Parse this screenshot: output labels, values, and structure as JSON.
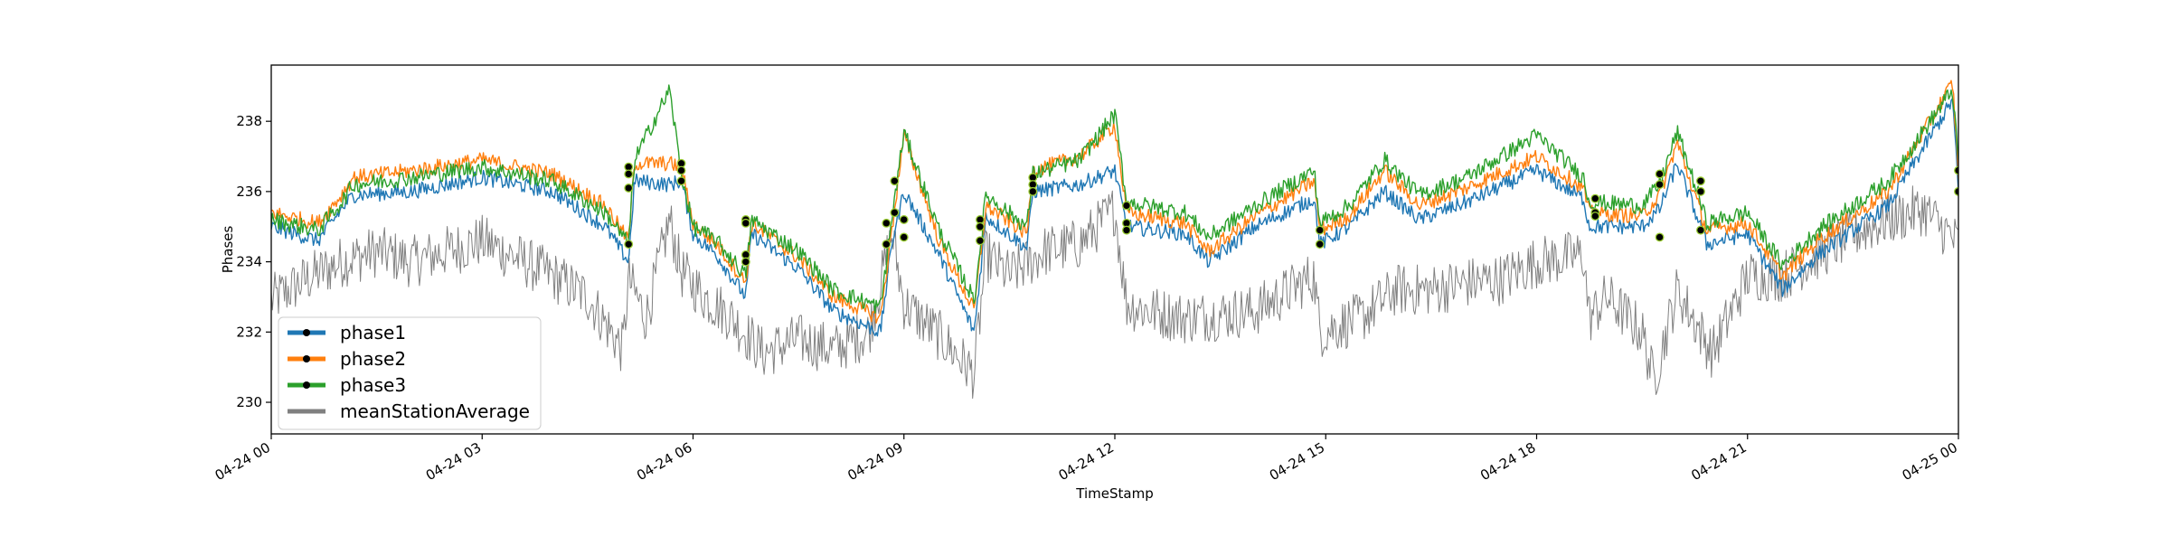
{
  "chart_data": {
    "type": "line",
    "title": "",
    "xlabel": "TimeStamp",
    "ylabel": "Phases",
    "xlim": [
      "2023-04-24T00:00",
      "2023-04-25T00:00"
    ],
    "ylim": [
      229.1,
      239.6
    ],
    "x_ticks": [
      "04-24 00",
      "04-24 03",
      "04-24 06",
      "04-24 09",
      "04-24 12",
      "04-24 15",
      "04-24 18",
      "04-24 21",
      "04-25 00"
    ],
    "y_ticks": [
      230,
      232,
      234,
      236,
      238
    ],
    "grid": false,
    "legend_position": "lower-left",
    "colors": {
      "phase1": "#1f77b4",
      "phase2": "#ff7f0e",
      "phase3": "#2ca02c",
      "meanStationAverage": "#808080",
      "marker": "#000000"
    },
    "series": [
      {
        "name": "phase1",
        "x": [
          "00:00",
          "00:40",
          "01:00",
          "01:10",
          "02:00",
          "03:00",
          "04:00",
          "04:45",
          "05:05",
          "05:10",
          "05:40",
          "05:50",
          "06:00",
          "06:20",
          "06:45",
          "06:50",
          "07:30",
          "08:00",
          "08:40",
          "08:50",
          "09:00",
          "09:30",
          "10:00",
          "10:10",
          "10:45",
          "10:50",
          "11:30",
          "12:00",
          "12:10",
          "13:00",
          "13:20",
          "14:00",
          "14:50",
          "14:55",
          "15:20",
          "15:50",
          "16:20",
          "17:00",
          "18:00",
          "18:40",
          "18:45",
          "19:30",
          "19:45",
          "20:00",
          "20:20",
          "20:25",
          "21:00",
          "21:30",
          "22:00",
          "23:00",
          "23:55",
          "24:00"
        ],
        "values": [
          235.0,
          234.6,
          235.5,
          235.9,
          236.0,
          236.4,
          236.0,
          235.0,
          234.0,
          236.3,
          236.2,
          236.3,
          234.8,
          234.2,
          233.0,
          234.8,
          233.8,
          232.6,
          232.0,
          234.6,
          236.0,
          234.2,
          232.0,
          235.3,
          234.4,
          236.0,
          236.2,
          236.6,
          235.0,
          234.8,
          234.0,
          235.0,
          235.8,
          234.5,
          235.0,
          236.0,
          235.2,
          235.7,
          236.6,
          235.8,
          235.0,
          235.0,
          235.5,
          236.8,
          235.0,
          234.5,
          234.8,
          233.2,
          234.2,
          235.6,
          238.6,
          236.0
        ]
      },
      {
        "name": "phase2",
        "x": [
          "00:00",
          "00:40",
          "01:00",
          "01:10",
          "02:00",
          "03:00",
          "04:00",
          "04:45",
          "05:05",
          "05:10",
          "05:40",
          "05:50",
          "06:00",
          "06:20",
          "06:45",
          "06:50",
          "07:30",
          "08:00",
          "08:40",
          "08:50",
          "09:00",
          "09:30",
          "10:00",
          "10:10",
          "10:45",
          "10:50",
          "11:30",
          "12:00",
          "12:10",
          "13:00",
          "13:20",
          "14:00",
          "14:50",
          "14:55",
          "15:20",
          "15:50",
          "16:20",
          "17:00",
          "18:00",
          "18:40",
          "18:45",
          "19:30",
          "19:45",
          "20:00",
          "20:20",
          "20:25",
          "21:00",
          "21:30",
          "22:00",
          "23:00",
          "23:55",
          "24:00"
        ],
        "values": [
          235.4,
          235.1,
          235.9,
          236.4,
          236.6,
          236.9,
          236.5,
          235.6,
          234.6,
          236.8,
          236.8,
          236.7,
          235.1,
          234.5,
          233.4,
          235.1,
          234.1,
          233.0,
          232.4,
          235.0,
          237.6,
          234.6,
          232.6,
          235.6,
          234.8,
          236.6,
          237.0,
          237.9,
          235.4,
          235.1,
          234.3,
          235.3,
          236.3,
          234.9,
          235.3,
          236.6,
          235.6,
          236.1,
          237.0,
          236.1,
          235.4,
          235.3,
          235.9,
          237.4,
          235.4,
          234.9,
          235.1,
          233.6,
          234.6,
          236.0,
          239.1,
          236.5
        ]
      },
      {
        "name": "phase3",
        "x": [
          "00:00",
          "00:40",
          "01:00",
          "01:10",
          "02:00",
          "03:00",
          "04:00",
          "04:45",
          "05:05",
          "05:10",
          "05:40",
          "05:50",
          "06:00",
          "06:20",
          "06:45",
          "06:50",
          "07:30",
          "08:00",
          "08:40",
          "08:50",
          "09:00",
          "09:30",
          "10:00",
          "10:10",
          "10:45",
          "10:50",
          "11:30",
          "12:00",
          "12:10",
          "13:00",
          "13:20",
          "14:00",
          "14:50",
          "14:55",
          "15:20",
          "15:50",
          "16:20",
          "17:00",
          "18:00",
          "18:40",
          "18:45",
          "19:30",
          "19:45",
          "20:00",
          "20:20",
          "20:25",
          "21:00",
          "21:30",
          "22:00",
          "23:00",
          "23:55",
          "24:00"
        ],
        "values": [
          235.2,
          234.9,
          235.7,
          236.2,
          236.4,
          236.7,
          236.3,
          235.4,
          234.5,
          236.9,
          238.9,
          236.5,
          235.0,
          234.6,
          233.6,
          235.2,
          234.3,
          233.2,
          232.7,
          235.3,
          237.7,
          234.9,
          232.9,
          235.9,
          235.0,
          236.5,
          236.9,
          238.2,
          235.7,
          235.4,
          234.7,
          235.6,
          236.6,
          235.1,
          235.6,
          236.9,
          235.9,
          236.4,
          237.6,
          236.4,
          235.7,
          235.6,
          236.2,
          237.7,
          235.7,
          235.1,
          235.4,
          233.9,
          234.9,
          236.3,
          238.9,
          236.8
        ]
      },
      {
        "name": "meanStationAverage",
        "x": [
          "00:00",
          "00:30",
          "01:00",
          "01:30",
          "02:00",
          "03:00",
          "04:00",
          "04:30",
          "05:00",
          "05:05",
          "05:20",
          "05:40",
          "05:50",
          "06:10",
          "06:30",
          "07:00",
          "07:30",
          "08:00",
          "08:30",
          "08:50",
          "09:00",
          "09:30",
          "10:00",
          "10:10",
          "10:30",
          "11:00",
          "11:30",
          "12:00",
          "12:10",
          "12:30",
          "13:00",
          "14:00",
          "14:50",
          "14:55",
          "15:30",
          "16:00",
          "16:30",
          "17:00",
          "17:30",
          "18:00",
          "18:40",
          "18:45",
          "19:00",
          "19:30",
          "19:40",
          "20:00",
          "20:30",
          "21:00",
          "21:30",
          "22:00",
          "22:30",
          "23:00",
          "23:30",
          "24:00"
        ],
        "values": [
          232.9,
          233.5,
          234.0,
          234.3,
          234.0,
          234.6,
          233.6,
          233.0,
          231.5,
          233.5,
          232.4,
          235.2,
          233.7,
          233.0,
          232.5,
          231.4,
          231.8,
          231.5,
          232.0,
          234.8,
          232.8,
          231.9,
          230.8,
          234.2,
          233.6,
          234.3,
          234.5,
          235.5,
          232.8,
          232.6,
          232.4,
          232.6,
          233.6,
          232.0,
          232.4,
          233.2,
          233.2,
          233.4,
          233.5,
          234.0,
          234.2,
          232.4,
          233.0,
          232.0,
          230.6,
          233.2,
          231.4,
          233.6,
          233.6,
          234.2,
          234.8,
          235.2,
          235.5,
          234.5
        ]
      }
    ],
    "markers": {
      "x": [
        "05:05",
        "05:05",
        "05:05",
        "05:05",
        "05:50",
        "05:50",
        "05:50",
        "06:45",
        "06:45",
        "06:45",
        "06:45",
        "08:45",
        "08:45",
        "08:52",
        "08:52",
        "09:00",
        "09:00",
        "10:05",
        "10:05",
        "10:05",
        "10:50",
        "10:50",
        "10:50",
        "12:10",
        "12:10",
        "12:10",
        "14:55",
        "14:55",
        "18:50",
        "18:50",
        "18:50",
        "19:45",
        "19:45",
        "19:45",
        "20:20",
        "20:20",
        "20:20",
        "24:00",
        "24:00"
      ],
      "values": [
        236.7,
        236.5,
        236.1,
        234.5,
        236.8,
        236.6,
        236.3,
        235.2,
        235.1,
        234.2,
        234.0,
        235.1,
        234.5,
        236.3,
        235.4,
        235.2,
        234.7,
        235.2,
        235.0,
        234.6,
        236.4,
        236.2,
        236.0,
        235.6,
        235.1,
        234.9,
        234.9,
        234.5,
        235.8,
        235.4,
        235.3,
        236.5,
        236.2,
        234.7,
        236.3,
        236.0,
        234.9,
        236.6,
        236.0
      ]
    }
  }
}
